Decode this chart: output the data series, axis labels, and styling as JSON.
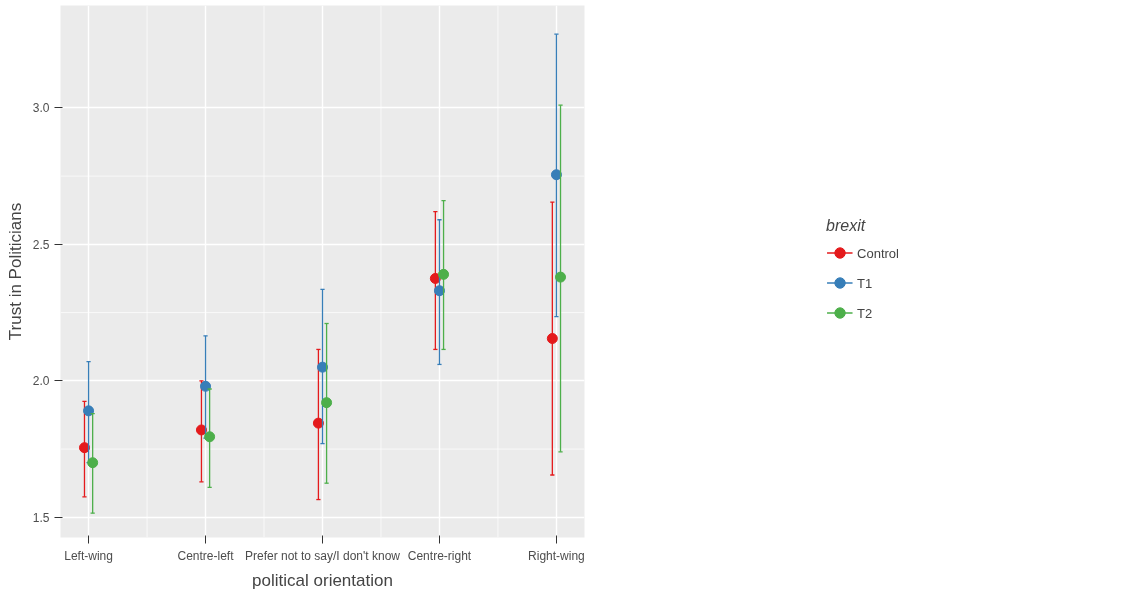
{
  "chart_data": {
    "type": "scatter",
    "xlabel": "political orientation",
    "ylabel": "Trust in Politicians",
    "legend_title": "brexit",
    "categories": [
      "Left-wing",
      "Centre-left",
      "Prefer not to say/I don't know",
      "Centre-right",
      "Right-wing"
    ],
    "series": [
      {
        "name": "Control",
        "color": "#e41a1c",
        "values": [
          1.755,
          1.82,
          1.845,
          2.375,
          2.155
        ],
        "errors": [
          [
            1.575,
            1.925
          ],
          [
            1.63,
            2.0
          ],
          [
            1.565,
            2.115
          ],
          [
            2.115,
            2.62
          ],
          [
            1.655,
            2.655
          ]
        ]
      },
      {
        "name": "T1",
        "color": "#377eb8",
        "values": [
          1.89,
          1.98,
          2.05,
          2.33,
          2.755
        ],
        "errors": [
          [
            1.7,
            2.07
          ],
          [
            1.79,
            2.165
          ],
          [
            1.77,
            2.335
          ],
          [
            2.06,
            2.59
          ],
          [
            2.235,
            3.27
          ]
        ]
      },
      {
        "name": "T2",
        "color": "#4daf4a",
        "values": [
          1.7,
          1.795,
          1.92,
          2.39,
          2.38
        ],
        "errors": [
          [
            1.515,
            1.88
          ],
          [
            1.61,
            1.97
          ],
          [
            1.625,
            2.21
          ],
          [
            2.115,
            2.66
          ],
          [
            1.74,
            3.01
          ]
        ]
      }
    ],
    "ylim": [
      1.426,
      3.375
    ],
    "yticks": [
      {
        "value": 1.5,
        "label": "1.5"
      },
      {
        "value": 2.0,
        "label": "2.0"
      },
      {
        "value": 2.5,
        "label": "2.5"
      },
      {
        "value": 3.0,
        "label": "3.0"
      }
    ],
    "marker": "circle",
    "grid": true,
    "legend": "right"
  }
}
